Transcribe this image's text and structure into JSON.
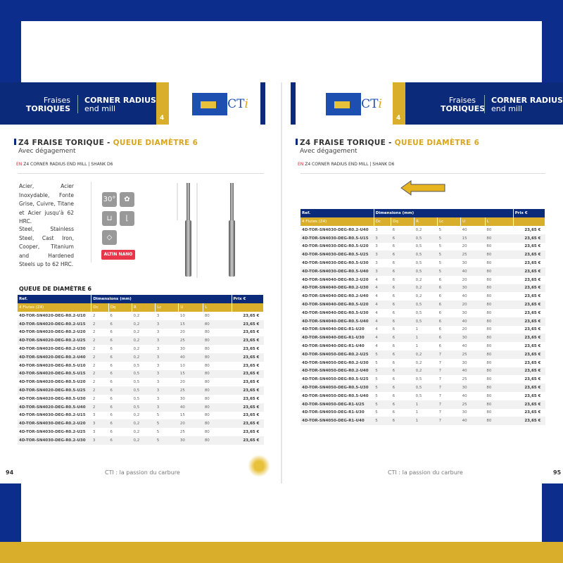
{
  "header": {
    "left_fr_line1": "Fraises",
    "left_fr_line2": "TORIQUES",
    "left_en_line1": "CORNER RADIUS",
    "left_en_line2": "end mill",
    "section_number": "4",
    "logo_text": "CTi"
  },
  "product": {
    "title_main": "Z4 FRAISE TORIQUE - ",
    "title_accent": "QUEUE DIAMÈTRE 6",
    "subtitle": "Avec dégagement",
    "en_flag": "EN",
    "en_label": "Z4 CORNER RADIUS END MILL | SHANK D6"
  },
  "materials_fr": "Acier, Acier Inoxydable, Fonte Grise, Cuivre, Titane et Acier jusqu'à 62 HRC.",
  "materials_en": "Steel, Stainless Steel, Cast Iron, Cooper, Titanium and Hardened Steels up to 62 HRC.",
  "coating_badge": "ALTIN NANO",
  "feature_icons": [
    "helix-30-icon",
    "4-flutes-icon",
    "slot-icon",
    "shoulder-icon",
    "block-icon"
  ],
  "table_heading": "QUEUE DE DIAMÈTRE 6",
  "table_header": {
    "ref": "Ref.",
    "dims": "Dimensions (mm)",
    "price": "Prix €",
    "group": "4 Flutes (Z4)",
    "cols": [
      "Dc",
      "Dq",
      "R",
      "Lc",
      "U",
      "L"
    ]
  },
  "left_rows": [
    [
      "4D-TOR-SN4020-DEG-R0.2-U10",
      "2",
      "6",
      "0,2",
      "3",
      "10",
      "80",
      "23,65 €"
    ],
    [
      "4D-TOR-SN4020-DEG-R0.2-U15",
      "2",
      "6",
      "0,2",
      "3",
      "15",
      "80",
      "23,65 €"
    ],
    [
      "4D-TOR-SN4020-DEG-R0.2-U20",
      "2",
      "6",
      "0,2",
      "3",
      "20",
      "80",
      "23,65 €"
    ],
    [
      "4D-TOR-SN4020-DEG-R0.2-U25",
      "2",
      "6",
      "0,2",
      "3",
      "25",
      "80",
      "23,65 €"
    ],
    [
      "4D-TOR-SN4020-DEG-R0.2-U30",
      "2",
      "6",
      "0,2",
      "3",
      "30",
      "80",
      "23,65 €"
    ],
    [
      "4D-TOR-SN4020-DEG-R0.2-U40",
      "2",
      "6",
      "0,2",
      "3",
      "40",
      "80",
      "23,65 €"
    ],
    [
      "4D-TOR-SN4020-DEG-R0.5-U10",
      "2",
      "6",
      "0,5",
      "3",
      "10",
      "80",
      "23,65 €"
    ],
    [
      "4D-TOR-SN4020-DEG-R0.5-U15",
      "2",
      "6",
      "0,5",
      "3",
      "15",
      "80",
      "23,65 €"
    ],
    [
      "4D-TOR-SN4020-DEG-R0.5-U20",
      "2",
      "6",
      "0,5",
      "3",
      "20",
      "80",
      "23,65 €"
    ],
    [
      "4D-TOR-SN4020-DEG-R0.5-U25",
      "2",
      "6",
      "0,5",
      "3",
      "25",
      "80",
      "23,65 €"
    ],
    [
      "4D-TOR-SN4020-DEG-R0.5-U30",
      "2",
      "6",
      "0,5",
      "3",
      "30",
      "80",
      "23,65 €"
    ],
    [
      "4D-TOR-SN4020-DEG-R0.5-U40",
      "2",
      "6",
      "0,5",
      "3",
      "40",
      "80",
      "23,65 €"
    ],
    [
      "4D-TOR-SN4030-DEG-R0.2-U15",
      "3",
      "6",
      "0,2",
      "5",
      "15",
      "80",
      "23,65 €"
    ],
    [
      "4D-TOR-SN4030-DEG-R0.2-U20",
      "3",
      "6",
      "0,2",
      "5",
      "20",
      "80",
      "23,65 €"
    ],
    [
      "4D-TOR-SN4030-DEG-R0.2-U25",
      "3",
      "6",
      "0,2",
      "5",
      "25",
      "80",
      "23,65 €"
    ],
    [
      "4D-TOR-SN4030-DEG-R0.2-U30",
      "3",
      "6",
      "0,2",
      "5",
      "30",
      "80",
      "23,65 €"
    ]
  ],
  "right_rows": [
    [
      "4D-TOR-SN4030-DEG-R0.2-U40",
      "3",
      "6",
      "0,2",
      "5",
      "40",
      "80",
      "23,65 €"
    ],
    [
      "4D-TOR-SN4030-DEG-R0.5-U15",
      "3",
      "6",
      "0,5",
      "5",
      "15",
      "80",
      "23,65 €"
    ],
    [
      "4D-TOR-SN4030-DEG-R0.5-U20",
      "3",
      "6",
      "0,5",
      "5",
      "20",
      "80",
      "23,65 €"
    ],
    [
      "4D-TOR-SN4030-DEG-R0.5-U25",
      "3",
      "6",
      "0,5",
      "5",
      "25",
      "80",
      "23,65 €"
    ],
    [
      "4D-TOR-SN4030-DEG-R0.5-U30",
      "3",
      "6",
      "0,5",
      "5",
      "30",
      "80",
      "23,65 €"
    ],
    [
      "4D-TOR-SN4030-DEG-R0.5-U40",
      "3",
      "6",
      "0,5",
      "5",
      "40",
      "80",
      "23,65 €"
    ],
    [
      "4D-TOR-SN4040-DEG-R0.2-U20",
      "4",
      "6",
      "0,2",
      "6",
      "20",
      "80",
      "23,65 €"
    ],
    [
      "4D-TOR-SN4040-DEG-R0.2-U30",
      "4",
      "6",
      "0,2",
      "6",
      "30",
      "80",
      "23,65 €"
    ],
    [
      "4D-TOR-SN4040-DEG-R0.2-U40",
      "4",
      "6",
      "0,2",
      "6",
      "40",
      "80",
      "23,65 €"
    ],
    [
      "4D-TOR-SN4040-DEG-R0.5-U20",
      "4",
      "6",
      "0,5",
      "6",
      "20",
      "80",
      "23,65 €"
    ],
    [
      "4D-TOR-SN4040-DEG-R0.5-U30",
      "4",
      "6",
      "0,5",
      "6",
      "30",
      "80",
      "23,65 €"
    ],
    [
      "4D-TOR-SN4040-DEG-R0.5-U40",
      "4",
      "6",
      "0,5",
      "6",
      "40",
      "80",
      "23,65 €"
    ],
    [
      "4D-TOR-SN4040-DEG-R1-U20",
      "4",
      "6",
      "1",
      "6",
      "20",
      "80",
      "23,65 €"
    ],
    [
      "4D-TOR-SN4040-DEG-R1-U30",
      "4",
      "6",
      "1",
      "6",
      "30",
      "80",
      "23,65 €"
    ],
    [
      "4D-TOR-SN4040-DEG-R1-U40",
      "4",
      "6",
      "1",
      "6",
      "40",
      "80",
      "23,65 €"
    ],
    [
      "4D-TOR-SN4050-DEG-R0.2-U25",
      "5",
      "6",
      "0,2",
      "7",
      "25",
      "80",
      "23,65 €"
    ],
    [
      "4D-TOR-SN4050-DEG-R0.2-U30",
      "5",
      "6",
      "0,2",
      "7",
      "30",
      "80",
      "23,65 €"
    ],
    [
      "4D-TOR-SN4050-DEG-R0.2-U40",
      "5",
      "6",
      "0,2",
      "7",
      "40",
      "80",
      "23,65 €"
    ],
    [
      "4D-TOR-SN4050-DEG-R0.5-U25",
      "5",
      "6",
      "0,5",
      "7",
      "25",
      "80",
      "23,65 €"
    ],
    [
      "4D-TOR-SN4050-DEG-R0.5-U30",
      "5",
      "6",
      "0,5",
      "7",
      "30",
      "80",
      "23,65 €"
    ],
    [
      "4D-TOR-SN4050-DEG-R0.5-U40",
      "5",
      "6",
      "0,5",
      "7",
      "40",
      "80",
      "23,65 €"
    ],
    [
      "4D-TOR-SN4050-DEG-R1-U25",
      "5",
      "6",
      "1",
      "7",
      "25",
      "80",
      "23,65 €"
    ],
    [
      "4D-TOR-SN4050-DEG-R1-U30",
      "5",
      "6",
      "1",
      "7",
      "30",
      "80",
      "23,65 €"
    ],
    [
      "4D-TOR-SN4050-DEG-R1-U40",
      "5",
      "6",
      "1",
      "7",
      "40",
      "80",
      "23,65 €"
    ]
  ],
  "footer": {
    "tagline": "CTI : la passion du carbure",
    "page_left": "94",
    "page_right": "95"
  },
  "colors": {
    "navy": "#0b2a7a",
    "gold": "#d9ae2b",
    "frame_blue": "#0d2d8c",
    "badge_red": "#e8374a"
  }
}
